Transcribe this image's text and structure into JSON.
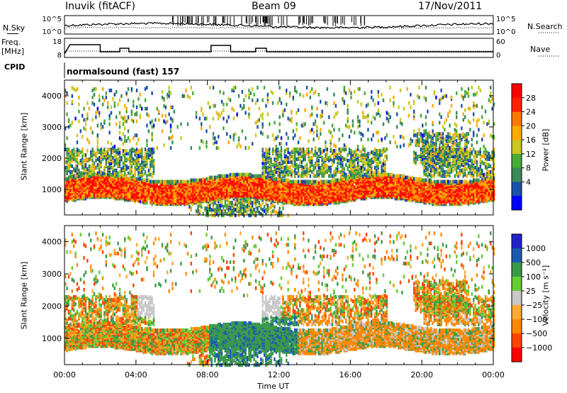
{
  "header": {
    "station": "Inuvik (fitACF)",
    "beam": "Beam 09",
    "date": "17/Nov/2011"
  },
  "side_labels": {
    "nsky": "N.Sky",
    "nsearch": "N.Search",
    "freq_line1": "Freq.",
    "freq_line2": "[MHz]",
    "nave": "Nave",
    "cpid": "CPID",
    "nsky_ticks": [
      "10^5",
      "10^0"
    ],
    "nsearch_ticks": [
      "10^5",
      "10^0"
    ],
    "freq_ticks": [
      "18",
      "8"
    ],
    "nave_ticks": [
      "60",
      "0"
    ]
  },
  "cpid_text": "normalsound (fast) 157",
  "colors": {
    "power": [
      "#0000ff",
      "#1c4fa8",
      "#3a8a5a",
      "#4aaa3a",
      "#c8c820",
      "#ffaa00",
      "#ff7700",
      "#ff2200",
      "#ff0000"
    ],
    "velocity": [
      "#ff0000",
      "#ff4400",
      "#ff8800",
      "#ffaa33",
      "#c8c8c8",
      "#66cc33",
      "#3a9a4a",
      "#1c5ab0",
      "#2222cc"
    ]
  },
  "chart_data": [
    {
      "type": "heatmap",
      "name": "power",
      "ylabel": "Slant Range [km]",
      "xlabel": "",
      "x_ticks": [
        "00:00",
        "04:00",
        "08:00",
        "12:00",
        "16:00",
        "20:00",
        "00:00"
      ],
      "y_ticks": [
        1000,
        2000,
        3000,
        4000
      ],
      "ylim": [
        180,
        4500
      ],
      "xlim_hours": [
        0,
        24
      ],
      "colorbar": {
        "label": "Power [dB]",
        "ticks": [
          "28",
          "24",
          "20",
          "16",
          "12",
          "8",
          "4"
        ],
        "range": [
          0,
          32
        ]
      }
    },
    {
      "type": "heatmap",
      "name": "velocity",
      "ylabel": "Slant Range [km]",
      "xlabel": "Time UT",
      "x_ticks": [
        "00:00",
        "04:00",
        "08:00",
        "12:00",
        "16:00",
        "20:00",
        "00:00"
      ],
      "y_ticks": [
        1000,
        2000,
        3000,
        4000
      ],
      "ylim": [
        180,
        4500
      ],
      "xlim_hours": [
        0,
        24
      ],
      "colorbar": {
        "label": "Velocity [m s⁻¹]",
        "ticks": [
          "1000",
          "500",
          "100",
          "25",
          "−25",
          "−100",
          "−500",
          "−1000"
        ],
        "range": [
          -1000,
          1000
        ]
      }
    }
  ]
}
